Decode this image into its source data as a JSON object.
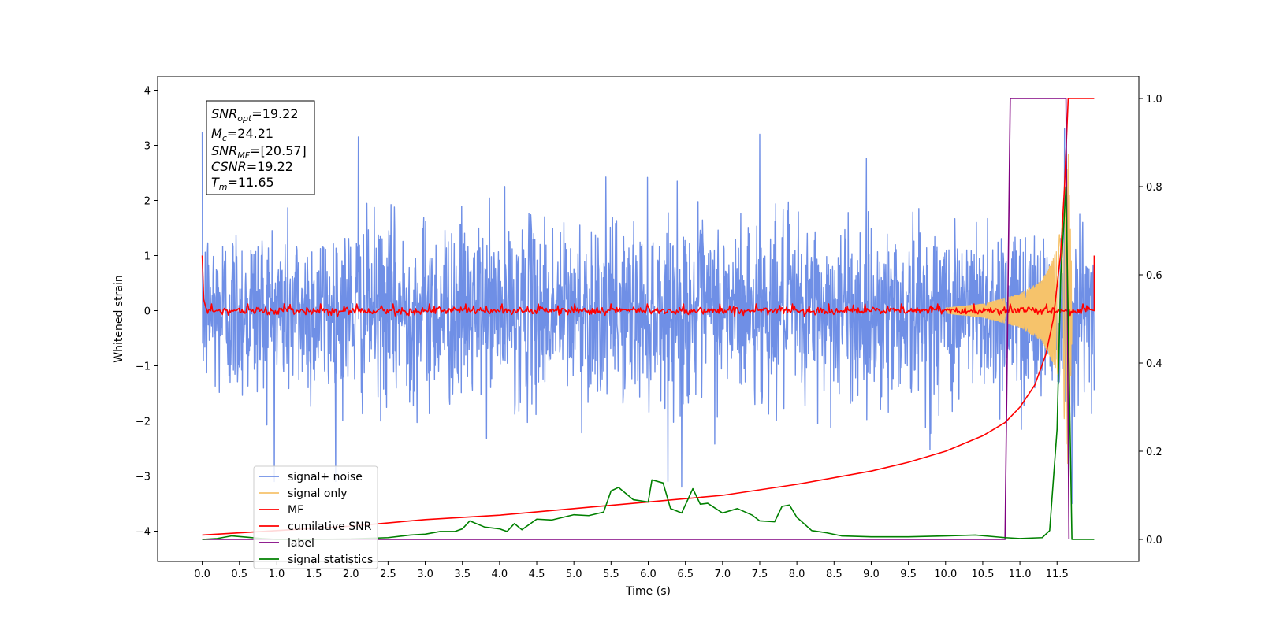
{
  "chart_data": {
    "type": "line",
    "xlabel": "Time (s)",
    "ylabel": "Whitened strain",
    "xlim": [
      -0.6,
      12.6
    ],
    "ylim": [
      -4.55,
      4.25
    ],
    "y2lim": [
      -0.05,
      1.05
    ],
    "x_tick_labels": [
      "0.0",
      "0.5",
      "1.0",
      "1.5",
      "2.0",
      "2.5",
      "3.0",
      "3.5",
      "4.0",
      "4.5",
      "5.0",
      "5.5",
      "6.0",
      "6.5",
      "7.0",
      "7.5",
      "8.0",
      "8.5",
      "9.0",
      "9.5",
      "10.0",
      "10.5",
      "11.0",
      "11.5"
    ],
    "y_tick_labels": [
      "−4",
      "−3",
      "−2",
      "−1",
      "0",
      "1",
      "2",
      "3",
      "4"
    ],
    "y2_tick_labels": [
      "0.0",
      "0.2",
      "0.4",
      "0.6",
      "0.8",
      "1.0"
    ],
    "grid": false,
    "legend_position": "lower-left",
    "annotation": {
      "snr_opt": {
        "label": "SNR",
        "sub": "opt",
        "value": "=19.22"
      },
      "mc": {
        "label": "M",
        "sub": "c",
        "value": "=24.21"
      },
      "snr_mf": {
        "label": "SNR",
        "sub": "MF",
        "value": "=[20.57]"
      },
      "csnr": {
        "label": "CSNR",
        "sub": "",
        "value": "=19.22"
      },
      "tm": {
        "label": "T",
        "sub": "m",
        "value": "=11.65"
      }
    },
    "series": [
      {
        "name": "signal+ noise",
        "color": "#6f8fe6",
        "axis": "left",
        "x_range": [
          0,
          12.0
        ],
        "noise_amplitude": 1.3,
        "peak_values": [
          [
            0.0,
            3.25
          ],
          [
            2.1,
            3.15
          ],
          [
            7.5,
            3.2
          ],
          [
            11.6,
            3.3
          ],
          [
            6.45,
            -3.2
          ],
          [
            11.7,
            -3.5
          ]
        ]
      },
      {
        "name": "signal only",
        "color": "#f6c36b",
        "axis": "left",
        "points": [
          [
            10.0,
            0.05
          ],
          [
            10.5,
            0.12
          ],
          [
            11.0,
            0.3
          ],
          [
            11.3,
            0.55
          ],
          [
            11.5,
            1.1
          ],
          [
            11.6,
            2.0
          ],
          [
            11.65,
            2.9
          ],
          [
            11.7,
            0.5
          ]
        ]
      },
      {
        "name": "MF",
        "color": "#ff0000",
        "axis": "left",
        "points": [
          [
            0.0,
            1.0
          ],
          [
            0.02,
            0.2
          ],
          [
            0.05,
            0.05
          ],
          [
            12.0,
            0.0
          ],
          [
            12.0,
            1.0
          ]
        ]
      },
      {
        "name": "cumilative SNR",
        "color": "#ff0000",
        "axis": "right",
        "points": [
          [
            0.0,
            0.01
          ],
          [
            1.0,
            0.02
          ],
          [
            2.0,
            0.03
          ],
          [
            3.0,
            0.045
          ],
          [
            4.0,
            0.055
          ],
          [
            5.0,
            0.07
          ],
          [
            6.0,
            0.085
          ],
          [
            7.0,
            0.1
          ],
          [
            8.0,
            0.125
          ],
          [
            9.0,
            0.155
          ],
          [
            9.5,
            0.175
          ],
          [
            10.0,
            0.2
          ],
          [
            10.5,
            0.235
          ],
          [
            10.8,
            0.265
          ],
          [
            11.0,
            0.3
          ],
          [
            11.2,
            0.35
          ],
          [
            11.35,
            0.42
          ],
          [
            11.45,
            0.5
          ],
          [
            11.55,
            0.65
          ],
          [
            11.6,
            0.8
          ],
          [
            11.65,
            1.0
          ],
          [
            12.0,
            1.0
          ]
        ]
      },
      {
        "name": "label",
        "color": "#800080",
        "axis": "right",
        "points": [
          [
            0.0,
            0.0
          ],
          [
            10.8,
            0.0
          ],
          [
            10.87,
            1.0
          ],
          [
            11.62,
            1.0
          ],
          [
            11.66,
            0.0
          ]
        ]
      },
      {
        "name": "signal statistics",
        "color": "#008000",
        "axis": "right",
        "points": [
          [
            0.0,
            0.0
          ],
          [
            0.2,
            0.002
          ],
          [
            0.4,
            0.008
          ],
          [
            0.6,
            0.005
          ],
          [
            0.8,
            0.002
          ],
          [
            1.0,
            0.0
          ],
          [
            1.5,
            0.0
          ],
          [
            2.0,
            0.001
          ],
          [
            2.5,
            0.004
          ],
          [
            2.8,
            0.01
          ],
          [
            3.0,
            0.012
          ],
          [
            3.2,
            0.018
          ],
          [
            3.4,
            0.018
          ],
          [
            3.5,
            0.024
          ],
          [
            3.6,
            0.042
          ],
          [
            3.8,
            0.028
          ],
          [
            4.0,
            0.024
          ],
          [
            4.1,
            0.018
          ],
          [
            4.2,
            0.036
          ],
          [
            4.3,
            0.022
          ],
          [
            4.5,
            0.046
          ],
          [
            4.7,
            0.044
          ],
          [
            4.8,
            0.048
          ],
          [
            5.0,
            0.056
          ],
          [
            5.2,
            0.054
          ],
          [
            5.4,
            0.062
          ],
          [
            5.5,
            0.11
          ],
          [
            5.6,
            0.118
          ],
          [
            5.8,
            0.09
          ],
          [
            6.0,
            0.085
          ],
          [
            6.05,
            0.135
          ],
          [
            6.2,
            0.128
          ],
          [
            6.3,
            0.07
          ],
          [
            6.45,
            0.06
          ],
          [
            6.6,
            0.115
          ],
          [
            6.7,
            0.08
          ],
          [
            6.8,
            0.082
          ],
          [
            7.0,
            0.06
          ],
          [
            7.2,
            0.07
          ],
          [
            7.4,
            0.055
          ],
          [
            7.5,
            0.042
          ],
          [
            7.7,
            0.04
          ],
          [
            7.8,
            0.075
          ],
          [
            7.9,
            0.078
          ],
          [
            8.0,
            0.05
          ],
          [
            8.2,
            0.02
          ],
          [
            8.4,
            0.015
          ],
          [
            8.6,
            0.008
          ],
          [
            9.0,
            0.006
          ],
          [
            9.5,
            0.006
          ],
          [
            10.0,
            0.008
          ],
          [
            10.4,
            0.01
          ],
          [
            10.8,
            0.004
          ],
          [
            11.0,
            0.002
          ],
          [
            11.3,
            0.004
          ],
          [
            11.4,
            0.02
          ],
          [
            11.5,
            0.25
          ],
          [
            11.55,
            0.6
          ],
          [
            11.62,
            0.8
          ],
          [
            11.66,
            0.4
          ],
          [
            11.7,
            0.0
          ],
          [
            12.0,
            0.0
          ]
        ]
      }
    ]
  }
}
